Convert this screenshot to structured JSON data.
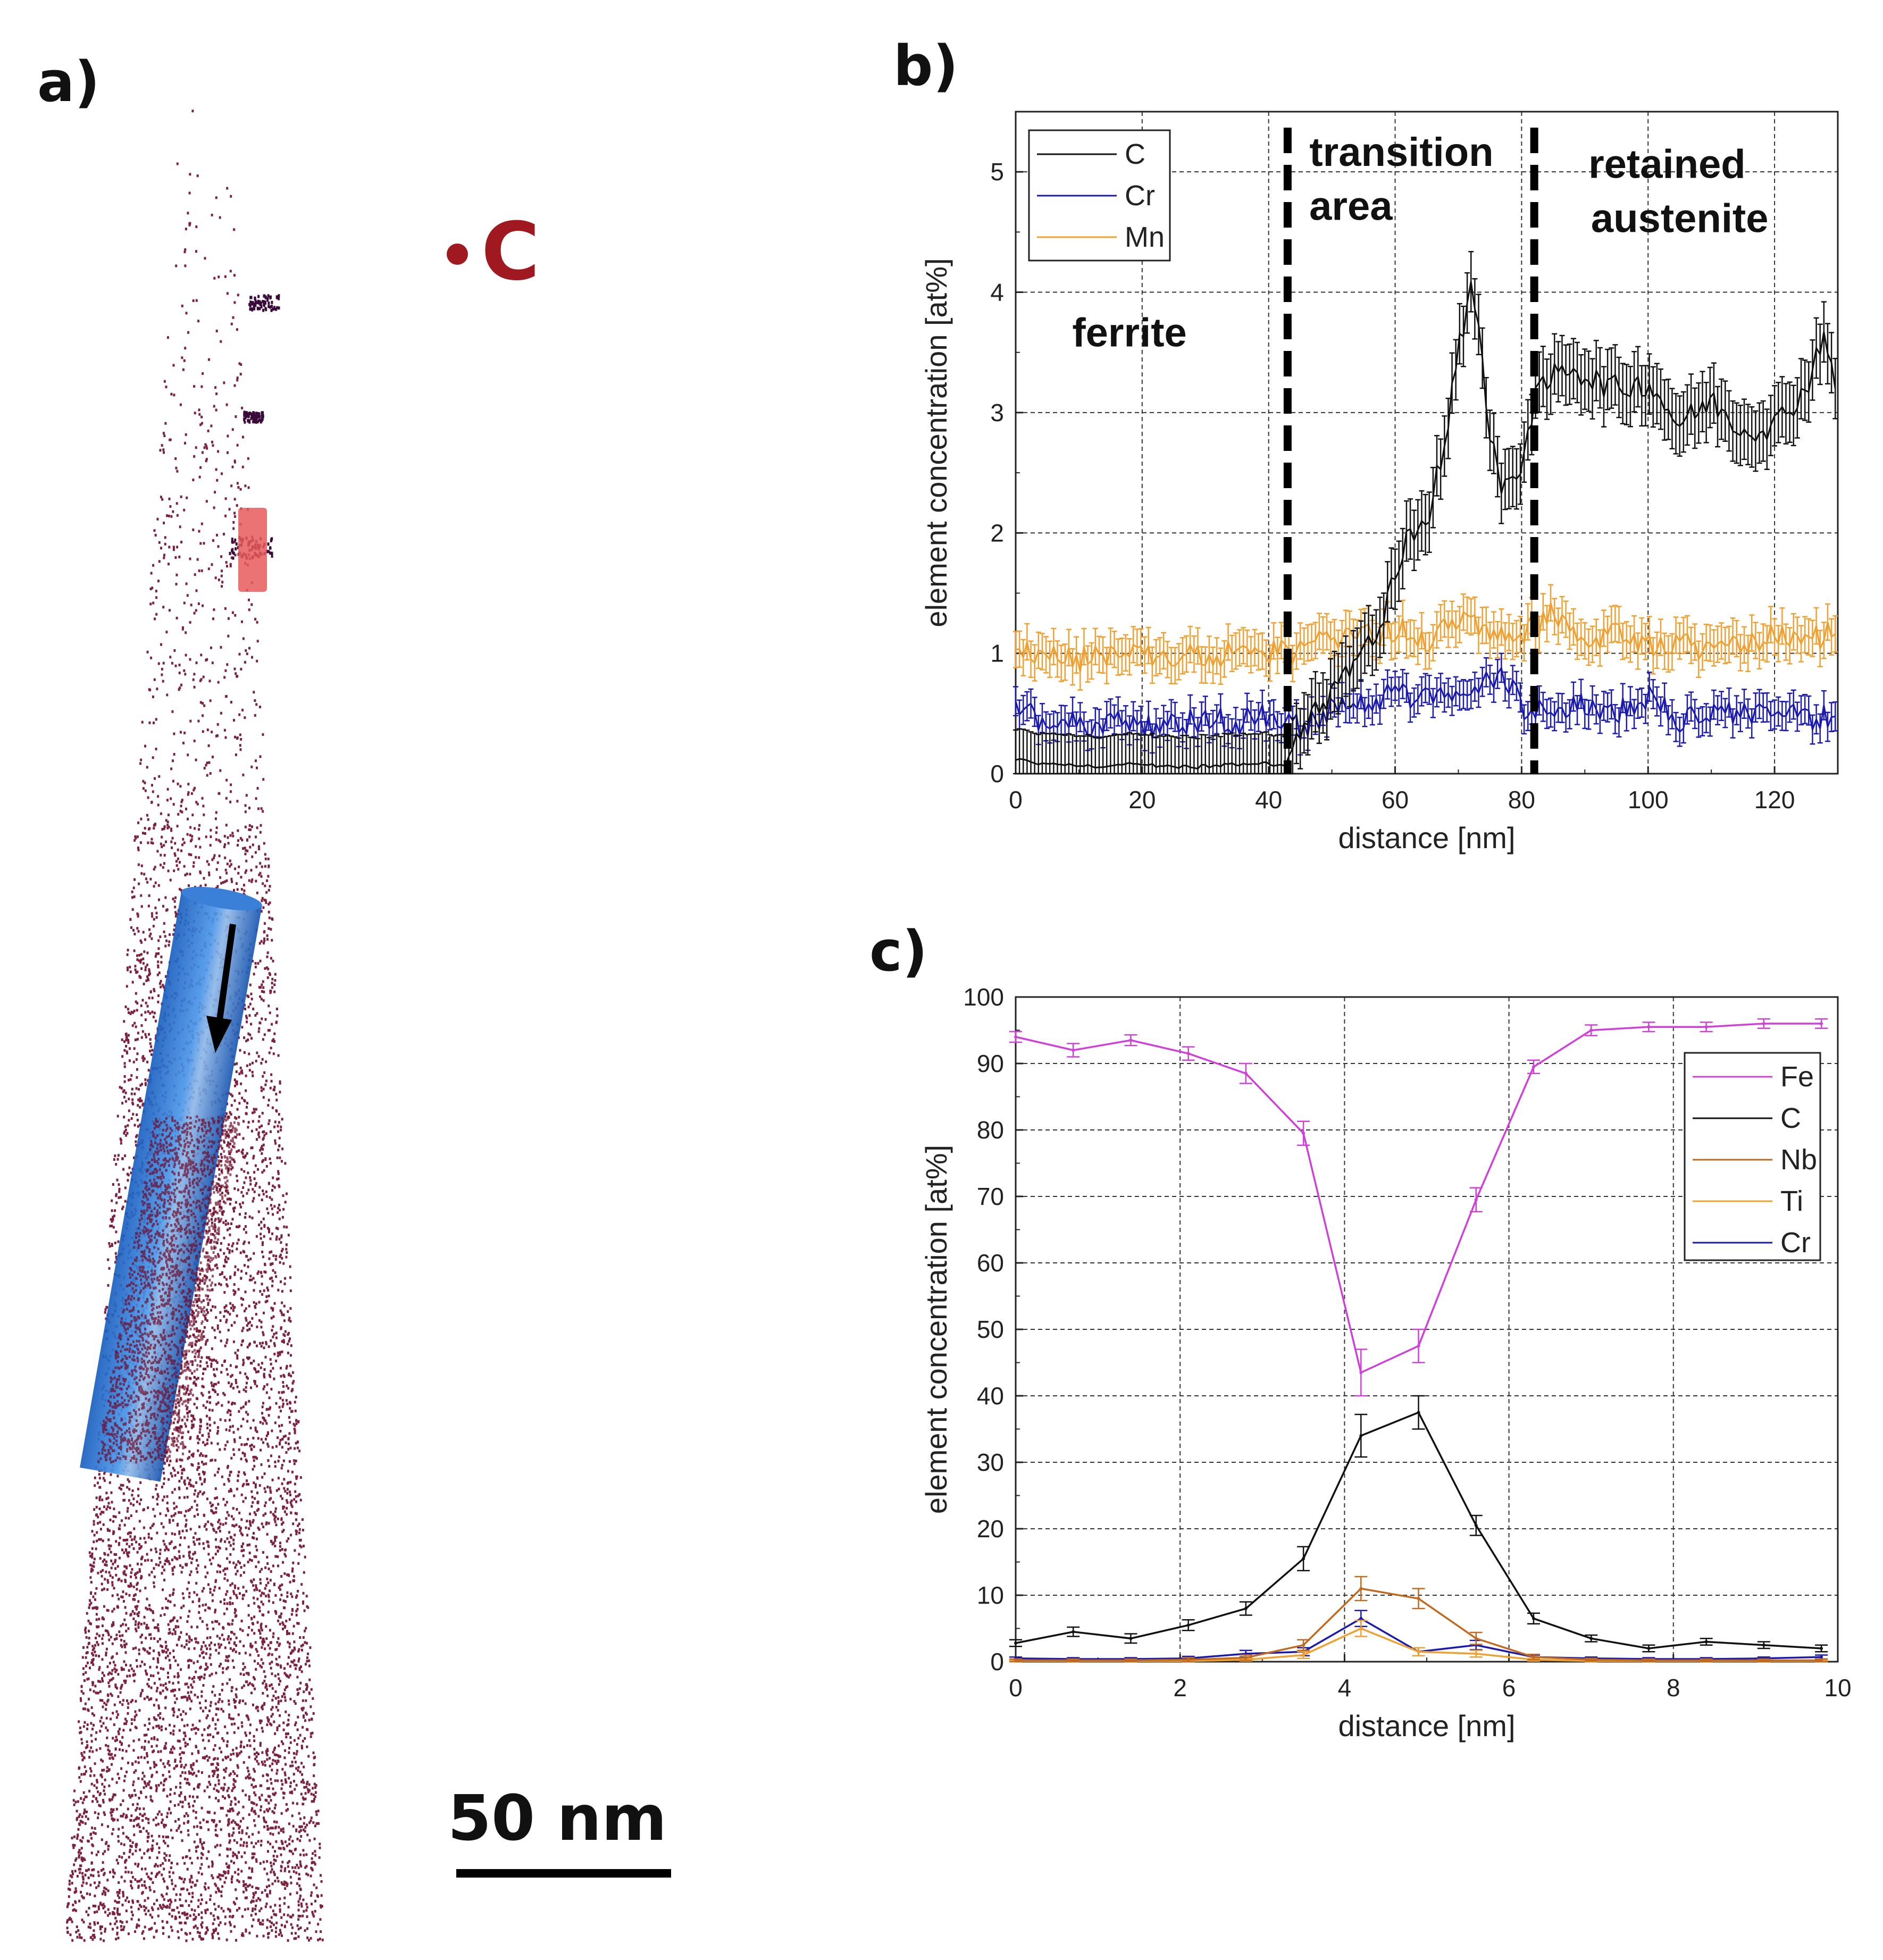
{
  "figure": {
    "panel_a": {
      "label": "a)",
      "element_legend": "C",
      "element_color": "#a01820",
      "atom_color": "#6e0a2a",
      "scalebar_label": "50 nm"
    },
    "panel_b": {
      "label": "b)"
    },
    "panel_c": {
      "label": "c)"
    }
  },
  "chart_data": [
    {
      "type": "line",
      "panel": "b",
      "xlabel": "distance [nm]",
      "ylabel": "element concentration [at%]",
      "xlim": [
        0,
        130
      ],
      "ylim": [
        0,
        5.5
      ],
      "xticks": [
        0,
        20,
        40,
        60,
        80,
        100,
        120
      ],
      "yticks": [
        0,
        1,
        2,
        3,
        4,
        5
      ],
      "boundaries": [
        43,
        82
      ],
      "region_labels": [
        {
          "text": "ferrite",
          "x": 18,
          "y": 3.55
        },
        {
          "text": "transition",
          "x": 61,
          "y": 5.05
        },
        {
          "text": "area",
          "x": 53,
          "y": 4.6
        },
        {
          "text": "retained",
          "x": 103,
          "y": 4.95
        },
        {
          "text": "austenite",
          "x": 105,
          "y": 4.5
        }
      ],
      "series": [
        {
          "name": "C",
          "color": "#111111",
          "x": [
            0,
            5,
            10,
            15,
            20,
            25,
            30,
            35,
            40,
            43,
            45,
            48,
            50,
            52,
            55,
            58,
            60,
            62,
            65,
            68,
            70,
            72,
            73,
            75,
            77,
            80,
            82,
            85,
            88,
            90,
            95,
            100,
            105,
            110,
            115,
            120,
            125,
            128,
            130
          ],
          "y": [
            0.12,
            0.08,
            0.06,
            0.07,
            0.08,
            0.05,
            0.06,
            0.08,
            0.09,
            0.05,
            0.3,
            0.55,
            0.7,
            0.85,
            1.0,
            1.3,
            1.7,
            1.95,
            2.1,
            2.8,
            3.5,
            4.1,
            3.8,
            2.8,
            2.3,
            2.6,
            3.1,
            3.3,
            3.4,
            3.3,
            3.2,
            3.25,
            2.9,
            3.1,
            2.85,
            2.9,
            3.2,
            3.7,
            3.1
          ],
          "err": 0.25
        },
        {
          "name": "Cr",
          "color": "#1a1ab0",
          "x": [
            0,
            5,
            10,
            15,
            20,
            25,
            30,
            35,
            40,
            43,
            45,
            50,
            55,
            60,
            65,
            70,
            75,
            77,
            80,
            85,
            90,
            95,
            100,
            105,
            110,
            115,
            120,
            125,
            130
          ],
          "y": [
            0.5,
            0.45,
            0.4,
            0.42,
            0.38,
            0.4,
            0.45,
            0.42,
            0.5,
            0.45,
            0.38,
            0.55,
            0.6,
            0.65,
            0.62,
            0.7,
            0.75,
            0.85,
            0.55,
            0.55,
            0.6,
            0.5,
            0.65,
            0.45,
            0.48,
            0.52,
            0.5,
            0.45,
            0.5
          ],
          "err": 0.12
        },
        {
          "name": "Mn",
          "color": "#f0a030",
          "x": [
            0,
            5,
            10,
            15,
            20,
            25,
            30,
            35,
            40,
            43,
            45,
            50,
            55,
            60,
            65,
            70,
            75,
            80,
            85,
            90,
            95,
            100,
            105,
            110,
            115,
            120,
            125,
            130
          ],
          "y": [
            1.05,
            1.0,
            0.95,
            1.0,
            0.95,
            1.0,
            0.98,
            1.0,
            1.02,
            1.0,
            1.05,
            1.1,
            1.15,
            1.2,
            1.12,
            1.25,
            1.2,
            1.15,
            1.35,
            1.1,
            1.2,
            1.05,
            1.1,
            1.0,
            1.05,
            1.15,
            1.1,
            1.2
          ],
          "err": 0.15
        }
      ]
    },
    {
      "type": "line",
      "panel": "c",
      "xlabel": "distance [nm]",
      "ylabel": "element concentration [at%]",
      "xlim": [
        0,
        10
      ],
      "ylim": [
        0,
        100
      ],
      "xticks": [
        0,
        2,
        4,
        6,
        8,
        10
      ],
      "yticks": [
        0,
        10,
        20,
        30,
        40,
        50,
        60,
        70,
        80,
        90,
        100
      ],
      "series": [
        {
          "name": "Fe",
          "color": "#d040d8",
          "x": [
            0,
            0.7,
            1.4,
            2.1,
            2.8,
            3.5,
            4.2,
            4.9,
            5.6,
            6.3,
            7.0,
            7.7,
            8.4,
            9.1,
            9.8
          ],
          "y": [
            94,
            92,
            93.5,
            91.5,
            88.5,
            79.5,
            43.5,
            47.5,
            69.5,
            89.5,
            95,
            95.5,
            95.5,
            96,
            96
          ],
          "err": [
            0.8,
            1,
            0.8,
            1,
            1.5,
            1.8,
            3.5,
            2.5,
            1.8,
            1,
            0.8,
            0.7,
            0.7,
            0.7,
            0.7
          ]
        },
        {
          "name": "C",
          "color": "#111111",
          "x": [
            0,
            0.7,
            1.4,
            2.1,
            2.8,
            3.5,
            4.2,
            4.9,
            5.6,
            6.3,
            7.0,
            7.7,
            8.4,
            9.1,
            9.8
          ],
          "y": [
            2.8,
            4.5,
            3.5,
            5.5,
            8,
            15.5,
            34,
            37.5,
            20.5,
            6.5,
            3.5,
            2,
            3,
            2.5,
            2
          ],
          "err": [
            0.5,
            0.7,
            0.7,
            0.8,
            1,
            1.8,
            3.2,
            2.5,
            1.5,
            0.8,
            0.5,
            0.5,
            0.5,
            0.5,
            0.5
          ]
        },
        {
          "name": "Nb",
          "color": "#c06a20",
          "x": [
            0,
            0.7,
            1.4,
            2.1,
            2.8,
            3.5,
            4.2,
            4.9,
            5.6,
            6.3,
            7.0,
            7.7,
            8.4,
            9.1,
            9.8
          ],
          "y": [
            0.2,
            0.2,
            0.2,
            0.3,
            0.6,
            2.5,
            11,
            9.5,
            3.5,
            0.7,
            0.3,
            0.2,
            0.2,
            0.2,
            0.2
          ],
          "err": [
            0.2,
            0.2,
            0.2,
            0.3,
            0.4,
            0.8,
            1.8,
            1.5,
            0.9,
            0.4,
            0.2,
            0.2,
            0.2,
            0.2,
            0.2
          ]
        },
        {
          "name": "Ti",
          "color": "#f0a030",
          "x": [
            0,
            0.7,
            1.4,
            2.1,
            2.8,
            3.5,
            4.2,
            4.9,
            5.6,
            6.3,
            7.0,
            7.7,
            8.4,
            9.1,
            9.8
          ],
          "y": [
            0.1,
            0.1,
            0.1,
            0.1,
            0.3,
            1,
            5,
            1.5,
            1.2,
            0.3,
            0.1,
            0.1,
            0.1,
            0.1,
            0.1
          ],
          "err": [
            0.1,
            0.1,
            0.1,
            0.1,
            0.2,
            0.5,
            1.2,
            0.6,
            0.5,
            0.2,
            0.1,
            0.1,
            0.1,
            0.1,
            0.1
          ]
        },
        {
          "name": "Cr",
          "color": "#1a1ab0",
          "x": [
            0,
            0.7,
            1.4,
            2.1,
            2.8,
            3.5,
            4.2,
            4.9,
            5.6,
            6.3,
            7.0,
            7.7,
            8.4,
            9.1,
            9.8
          ],
          "y": [
            0.5,
            0.4,
            0.4,
            0.5,
            1.2,
            1.5,
            6.5,
            1.5,
            2.5,
            0.7,
            0.5,
            0.4,
            0.4,
            0.5,
            0.7
          ],
          "err": [
            0.2,
            0.2,
            0.2,
            0.3,
            0.5,
            0.6,
            1.2,
            0.6,
            0.7,
            0.3,
            0.2,
            0.2,
            0.2,
            0.2,
            0.3
          ]
        }
      ]
    }
  ]
}
